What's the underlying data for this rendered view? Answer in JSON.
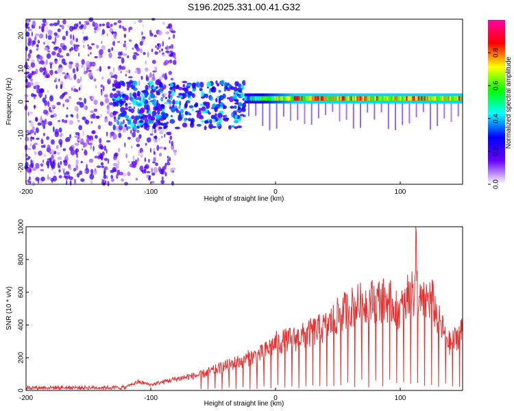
{
  "title": "S196.2025.331.00.41.G32",
  "chart_data": [
    {
      "type": "heatmap",
      "name": "spectrogram",
      "xlabel": "Height of straight line (km)",
      "ylabel": "Frequency (Hz)",
      "xlim": [
        -200,
        150
      ],
      "ylim": [
        -25,
        25
      ],
      "xticks": [
        -200,
        -100,
        0,
        100
      ],
      "yticks": [
        -20,
        -10,
        0,
        10,
        20
      ],
      "colorbar": {
        "label": "Normalized spectral amplitude",
        "range": [
          0,
          1
        ],
        "ticks": [
          0.0,
          0.2,
          0.4,
          0.6,
          0.8
        ],
        "tick_labels": [
          "0.0",
          "0.2",
          "0.4",
          "0.6",
          "0.8"
        ],
        "colormap": [
          "#ffffff",
          "#6a00ff",
          "#0000ff",
          "#00ffff",
          "#00ff00",
          "#ffff00",
          "#ff0000",
          "#ff00aa"
        ]
      },
      "features": [
        {
          "region": "noise",
          "x_range": [
            -200,
            -80
          ],
          "freq_range": [
            -25,
            25
          ],
          "amplitude": 0.2
        },
        {
          "region": "onset",
          "x_range": [
            -130,
            -25
          ],
          "freq_range": [
            -8,
            6
          ],
          "amplitude": 0.35
        },
        {
          "region": "tone",
          "x_range": [
            -25,
            150
          ],
          "center_freq": 1,
          "half_width": 1.5,
          "amplitude": 0.9
        }
      ]
    },
    {
      "type": "line",
      "name": "snr",
      "xlabel": "Height of straight line (km)",
      "ylabel": "SNR (10 * v/v)",
      "xlim": [
        -200,
        150
      ],
      "ylim": [
        0,
        1000
      ],
      "xticks": [
        -200,
        -100,
        0,
        100
      ],
      "yticks": [
        0,
        200,
        400,
        600,
        800,
        1000
      ],
      "color": "#e83030",
      "series": [
        {
          "name": "SNR",
          "x": [
            -200,
            -150,
            -120,
            -110,
            -100,
            -80,
            -60,
            -40,
            -20,
            -10,
            0,
            10,
            20,
            30,
            40,
            50,
            60,
            70,
            80,
            90,
            100,
            105,
            110,
            115,
            120,
            125,
            130,
            140,
            150
          ],
          "values": [
            15,
            18,
            25,
            60,
            40,
            80,
            110,
            170,
            230,
            260,
            330,
            350,
            370,
            410,
            440,
            520,
            580,
            610,
            630,
            630,
            560,
            600,
            1000,
            600,
            620,
            650,
            500,
            320,
            420
          ]
        }
      ],
      "notch_start": -60,
      "notch_spacing": 5.6
    }
  ]
}
